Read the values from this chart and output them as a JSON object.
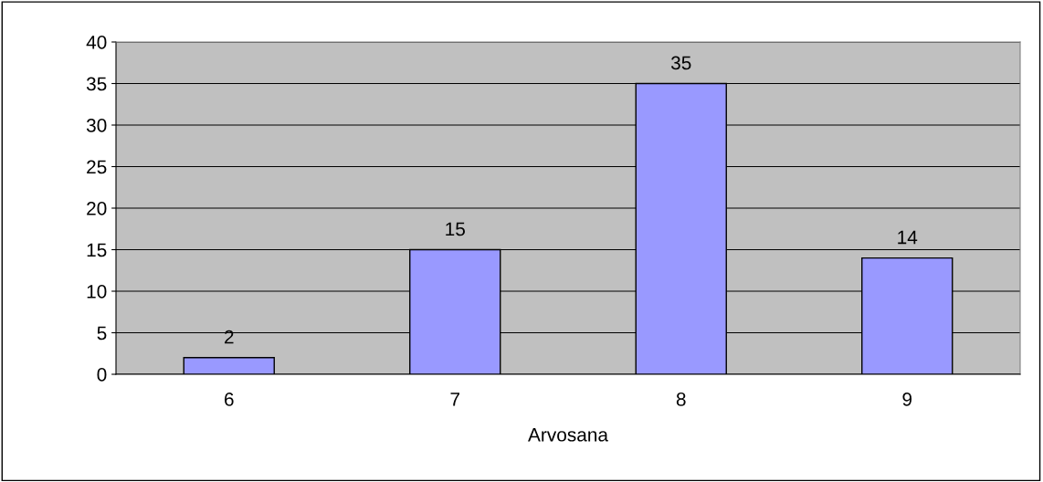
{
  "chart_data": {
    "type": "bar",
    "xlabel": "Arvosana",
    "categories": [
      "6",
      "7",
      "8",
      "9"
    ],
    "values": [
      2,
      15,
      35,
      14
    ],
    "color": "#9999ff",
    "ylim": [
      0,
      40
    ],
    "yticks": [
      0,
      5,
      10,
      15,
      20,
      25,
      30,
      35,
      40
    ],
    "grid": "y",
    "data_labels": true
  }
}
